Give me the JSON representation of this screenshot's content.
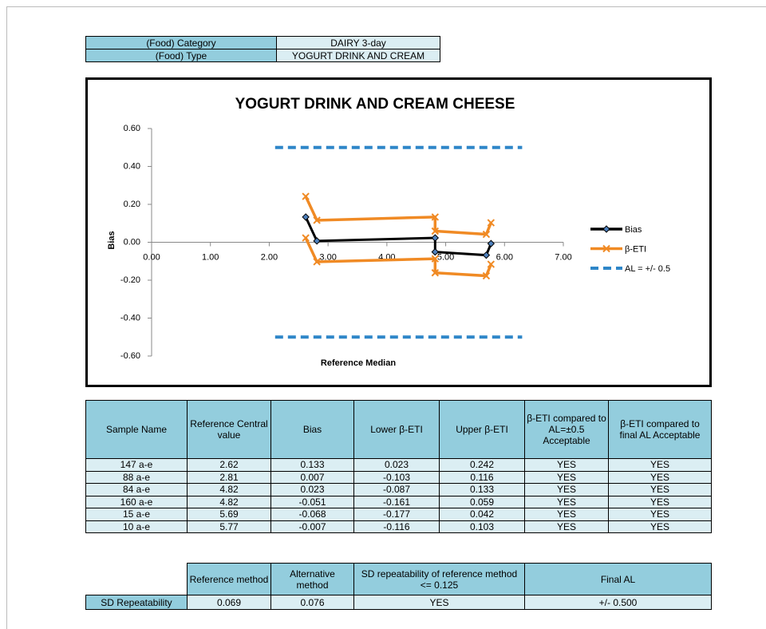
{
  "header": {
    "rows": [
      [
        "(Food) Category",
        "DAIRY 3-day"
      ],
      [
        "(Food) Type",
        "YOGURT DRINK  AND CREAM"
      ]
    ]
  },
  "chart_data": {
    "type": "line",
    "title": "YOGURT DRINK  AND CREAM CHEESE",
    "x_label": "Reference Median",
    "y_label": "Bias",
    "series": [
      {
        "name": "Bias",
        "color": "#000000",
        "x": [
          2.62,
          2.81,
          4.82,
          4.82,
          5.69,
          5.77
        ],
        "values": [
          0.133,
          0.007,
          0.023,
          -0.051,
          -0.068,
          -0.007
        ]
      },
      {
        "name": "β-ETI",
        "color": "#f08a24",
        "x": [
          2.62,
          2.81,
          4.82,
          4.82,
          5.69,
          5.77
        ],
        "values": [
          0.242,
          0.116,
          0.133,
          0.059,
          0.042,
          0.103
        ],
        "lower": [
          0.023,
          -0.103,
          -0.087,
          -0.161,
          -0.177,
          -0.116
        ]
      },
      {
        "name": "AL = +/- 0.5",
        "color": "#2e86c8",
        "x": [
          2.1,
          6.3
        ],
        "values": [
          0.5,
          0.5
        ],
        "lower": [
          -0.5,
          -0.5
        ]
      }
    ],
    "xlim": [
      0,
      7
    ],
    "xticks": [
      {
        "value": 0,
        "label": "0.00"
      },
      {
        "value": 1,
        "label": "1.00"
      },
      {
        "value": 2,
        "label": "2.00"
      },
      {
        "value": 3,
        "label": "3.00"
      },
      {
        "value": 4,
        "label": "4.00"
      },
      {
        "value": 5,
        "label": "5.00"
      },
      {
        "value": 6,
        "label": "6.00"
      },
      {
        "value": 7,
        "label": "7.00"
      }
    ],
    "ylim": [
      -0.6,
      0.6
    ],
    "yticks": [
      {
        "value": -0.6,
        "label": "-0.60"
      },
      {
        "value": -0.4,
        "label": "-0.40"
      },
      {
        "value": -0.2,
        "label": "-0.20"
      },
      {
        "value": 0,
        "label": "0.00"
      },
      {
        "value": 0.2,
        "label": "0.20"
      },
      {
        "value": 0.4,
        "label": "0.40"
      },
      {
        "value": 0.6,
        "label": "0.60"
      }
    ],
    "legend": "right"
  },
  "table": {
    "columns": [
      "Sample Name",
      "Reference Central value",
      "Bias",
      "Lower β-ETI",
      "Upper β-ETI",
      "β-ETI compared to AL=±0.5 Acceptable",
      "β-ETI compared to final AL Acceptable"
    ],
    "rows": [
      [
        "147 a-e",
        "2.62",
        "0.133",
        "0.023",
        "0.242",
        "YES",
        "YES"
      ],
      [
        "88 a-e",
        "2.81",
        "0.007",
        "-0.103",
        "0.116",
        "YES",
        "YES"
      ],
      [
        "84 a-e",
        "4.82",
        "0.023",
        "-0.087",
        "0.133",
        "YES",
        "YES"
      ],
      [
        "160 a-e",
        "4.82",
        "-0.051",
        "-0.161",
        "0.059",
        "YES",
        "YES"
      ],
      [
        "15 a-e",
        "5.69",
        "-0.068",
        "-0.177",
        "0.042",
        "YES",
        "YES"
      ],
      [
        "10 a-e",
        "5.77",
        "-0.007",
        "-0.116",
        "0.103",
        "YES",
        "YES"
      ]
    ]
  },
  "summary": {
    "columns": [
      "Reference method",
      "Alternative method",
      "SD repeatability of reference method <= 0.125",
      "Final AL"
    ],
    "row": [
      "SD Repeatability",
      "0.069",
      "0.076",
      "YES",
      "+/- 0.500"
    ]
  }
}
